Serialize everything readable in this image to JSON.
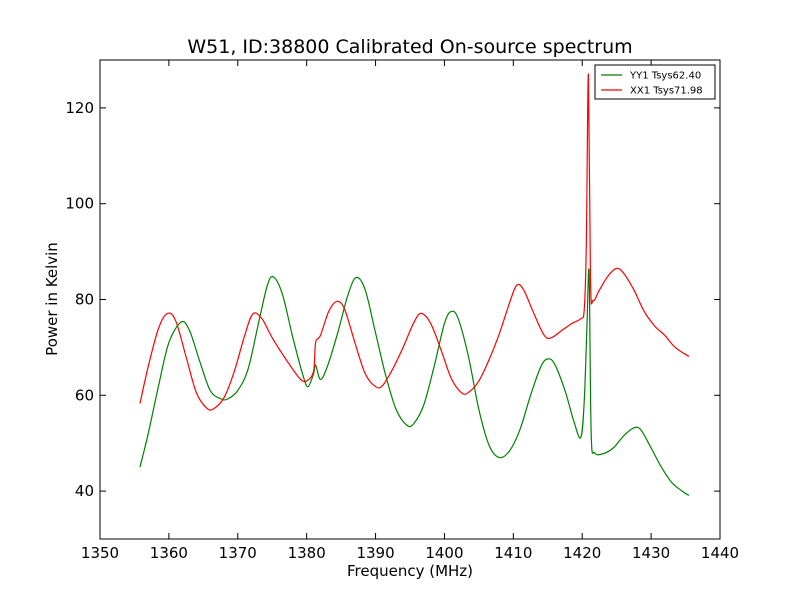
{
  "chart_data": {
    "type": "line",
    "title": "W51, ID:38800 Calibrated On-source spectrum",
    "xlabel": "Frequency (MHz)",
    "ylabel": "Power in Kelvin",
    "xlim": [
      1350,
      1440
    ],
    "ylim": [
      30,
      130
    ],
    "xticks": [
      "1350",
      "1360",
      "1370",
      "1380",
      "1390",
      "1400",
      "1410",
      "1420",
      "1430",
      "1440"
    ],
    "yticks": [
      "40",
      "60",
      "80",
      "100",
      "120"
    ],
    "grid": false,
    "legend_position": "top-right",
    "series": [
      {
        "name": "YY1 Tsys62.40",
        "color": "#008000",
        "points": [
          [
            1355.8,
            45
          ],
          [
            1357,
            52
          ],
          [
            1358.5,
            62
          ],
          [
            1360,
            71
          ],
          [
            1361.8,
            75.3
          ],
          [
            1363,
            73.5
          ],
          [
            1364.5,
            67
          ],
          [
            1366,
            61
          ],
          [
            1367.5,
            59.3
          ],
          [
            1368.5,
            59.2
          ],
          [
            1370,
            61
          ],
          [
            1371.5,
            65.5
          ],
          [
            1373,
            75
          ],
          [
            1374.3,
            83
          ],
          [
            1375.2,
            84.7
          ],
          [
            1376.5,
            81
          ],
          [
            1378,
            72
          ],
          [
            1379.5,
            64
          ],
          [
            1380.2,
            61.8
          ],
          [
            1381,
            64.5
          ],
          [
            1381.3,
            66.3
          ],
          [
            1382,
            63.3
          ],
          [
            1383,
            66
          ],
          [
            1384.5,
            73
          ],
          [
            1386,
            81
          ],
          [
            1387.2,
            84.6
          ],
          [
            1388.5,
            82
          ],
          [
            1390,
            73
          ],
          [
            1391.5,
            64
          ],
          [
            1393,
            57
          ],
          [
            1394.5,
            53.8
          ],
          [
            1395.5,
            54
          ],
          [
            1397,
            58
          ],
          [
            1398.5,
            66
          ],
          [
            1400,
            75
          ],
          [
            1401,
            77.5
          ],
          [
            1402,
            76
          ],
          [
            1403.5,
            68
          ],
          [
            1405,
            57
          ],
          [
            1406.5,
            49.5
          ],
          [
            1408,
            47
          ],
          [
            1409.5,
            48.5
          ],
          [
            1411,
            53
          ],
          [
            1412.5,
            60
          ],
          [
            1414,
            66
          ],
          [
            1415,
            67.6
          ],
          [
            1416,
            66.5
          ],
          [
            1417.5,
            61
          ],
          [
            1418.8,
            54.5
          ],
          [
            1419.8,
            51.2
          ],
          [
            1420.3,
            59
          ],
          [
            1420.7,
            75
          ],
          [
            1421,
            85.5
          ],
          [
            1421.3,
            52
          ],
          [
            1421.8,
            48
          ],
          [
            1423,
            47.8
          ],
          [
            1424.5,
            49
          ],
          [
            1426,
            51.5
          ],
          [
            1427.5,
            53.2
          ],
          [
            1428.5,
            52.8
          ],
          [
            1430,
            49
          ],
          [
            1431.5,
            45
          ],
          [
            1433,
            41.8
          ],
          [
            1434.5,
            40
          ],
          [
            1435.5,
            39.1
          ]
        ]
      },
      {
        "name": "XX1 Tsys71.98",
        "color": "#ff0000",
        "points": [
          [
            1355.8,
            58.3
          ],
          [
            1357,
            66
          ],
          [
            1358.5,
            74
          ],
          [
            1359.8,
            77.1
          ],
          [
            1361,
            75.5
          ],
          [
            1362.5,
            68
          ],
          [
            1364,
            60.5
          ],
          [
            1365.5,
            57.3
          ],
          [
            1366.5,
            57.2
          ],
          [
            1368,
            59.5
          ],
          [
            1369.5,
            65
          ],
          [
            1371,
            72.5
          ],
          [
            1372.2,
            77
          ],
          [
            1373.5,
            76
          ],
          [
            1375,
            72
          ],
          [
            1377,
            67.5
          ],
          [
            1379,
            63.5
          ],
          [
            1380,
            63
          ],
          [
            1381,
            65
          ],
          [
            1381.3,
            71
          ],
          [
            1382,
            72.5
          ],
          [
            1383.2,
            77.5
          ],
          [
            1384.4,
            79.6
          ],
          [
            1385.5,
            78
          ],
          [
            1387,
            71
          ],
          [
            1388.5,
            64.5
          ],
          [
            1390,
            61.8
          ],
          [
            1391,
            62
          ],
          [
            1392.5,
            65.5
          ],
          [
            1394,
            70
          ],
          [
            1395.5,
            75
          ],
          [
            1396.6,
            77.1
          ],
          [
            1398,
            75
          ],
          [
            1399.5,
            69.5
          ],
          [
            1401,
            63.5
          ],
          [
            1402.5,
            60.5
          ],
          [
            1403.5,
            60.6
          ],
          [
            1405,
            63
          ],
          [
            1406.5,
            67.5
          ],
          [
            1408,
            73
          ],
          [
            1409.5,
            79.5
          ],
          [
            1410.5,
            83
          ],
          [
            1411.5,
            82
          ],
          [
            1413,
            77
          ],
          [
            1414.5,
            72.5
          ],
          [
            1415.5,
            72
          ],
          [
            1417,
            73.5
          ],
          [
            1418.5,
            75
          ],
          [
            1419.8,
            76
          ],
          [
            1420.3,
            78
          ],
          [
            1420.6,
            92
          ],
          [
            1420.9,
            127
          ],
          [
            1421.2,
            84
          ],
          [
            1421.6,
            79.8
          ],
          [
            1422.5,
            82
          ],
          [
            1423.8,
            85
          ],
          [
            1425,
            86.5
          ],
          [
            1426,
            85.5
          ],
          [
            1427.5,
            82
          ],
          [
            1429,
            77.5
          ],
          [
            1430.5,
            74.5
          ],
          [
            1432,
            72.5
          ],
          [
            1433.5,
            70
          ],
          [
            1435.5,
            68.1
          ]
        ]
      }
    ]
  }
}
